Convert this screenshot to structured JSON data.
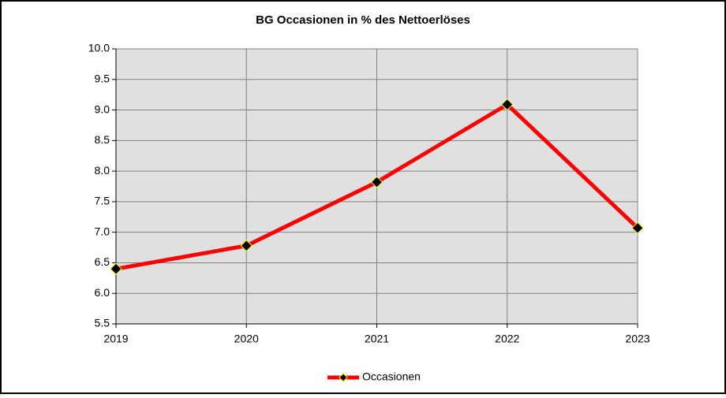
{
  "chart_data": {
    "type": "line",
    "title": "BG Occasionen in % des Nettoerlöses",
    "categories": [
      "2019",
      "2020",
      "2021",
      "2022",
      "2023"
    ],
    "series": [
      {
        "name": "Occasionen",
        "color": "#ff0000",
        "marker_color": "#000000",
        "marker_edge": "#ffff00",
        "values": [
          6.4,
          6.78,
          7.82,
          9.09,
          7.07
        ]
      }
    ],
    "ylim": [
      5.5,
      10
    ],
    "yticks": [
      {
        "value": 5.5,
        "label": "5.5"
      },
      {
        "value": 6,
        "label": "6.0"
      },
      {
        "value": 6.5,
        "label": "6.5"
      },
      {
        "value": 7,
        "label": "7.0"
      },
      {
        "value": 7.5,
        "label": "7.5"
      },
      {
        "value": 8,
        "label": "8.0"
      },
      {
        "value": 8.5,
        "label": "8.5"
      },
      {
        "value": 9,
        "label": "9.0"
      },
      {
        "value": 9.5,
        "label": "9.5"
      },
      {
        "value": 10,
        "label": "10.0"
      }
    ],
    "grid": true,
    "plot_background": "#e0e0e0",
    "legend": "bottom"
  }
}
